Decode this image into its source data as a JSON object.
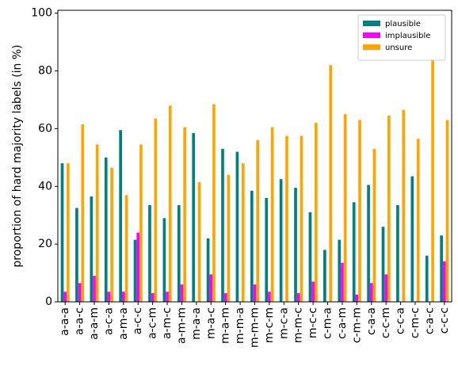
{
  "chart_data": {
    "type": "bar",
    "y_label": "proportion of hard majority labels (in %)",
    "categories": [
      "a-a-a",
      "a-a-c",
      "a-a-m",
      "a-c-a",
      "a-m-a",
      "a-c-c",
      "a-c-m",
      "a-m-c",
      "a-m-m",
      "m-a-a",
      "m-a-c",
      "m-a-m",
      "m-m-a",
      "m-m-m",
      "m-c-m",
      "m-c-a",
      "m-m-c",
      "m-c-c",
      "c-m-a",
      "c-a-m",
      "c-m-m",
      "c-a-a",
      "c-c-m",
      "c-c-a",
      "c-m-c",
      "c-a-c",
      "c-c-c"
    ],
    "series": [
      {
        "name": "plausible",
        "color": "#008080",
        "values": [
          48,
          32.5,
          36.5,
          50,
          59.5,
          21.5,
          33.5,
          29,
          33.5,
          58.5,
          22,
          53,
          52,
          38.5,
          36,
          42.5,
          39.5,
          31,
          18,
          21.5,
          34.5,
          40.5,
          26,
          33.5,
          43.5,
          16,
          23
        ]
      },
      {
        "name": "implausible",
        "color": "#ff00ff",
        "values": [
          3.5,
          6.5,
          9,
          3.5,
          3.5,
          24,
          3,
          3.5,
          6,
          0,
          9.5,
          3,
          0,
          6,
          3.5,
          0,
          3,
          7,
          0,
          13.5,
          2.5,
          6.5,
          9.5,
          0,
          0,
          0,
          14
        ]
      },
      {
        "name": "unsure",
        "color": "#ffa500",
        "values": [
          48,
          61.5,
          54.5,
          46.5,
          37,
          54.5,
          63.5,
          68,
          60.5,
          41.5,
          68.5,
          44,
          48,
          56,
          60.5,
          57.5,
          57.5,
          62,
          82,
          65,
          63,
          53,
          64.5,
          66.5,
          56.5,
          84,
          63
        ]
      }
    ],
    "ylim": [
      0,
      101
    ],
    "yticks": [
      0,
      20,
      40,
      60,
      80,
      100
    ],
    "legend": "upper right"
  }
}
